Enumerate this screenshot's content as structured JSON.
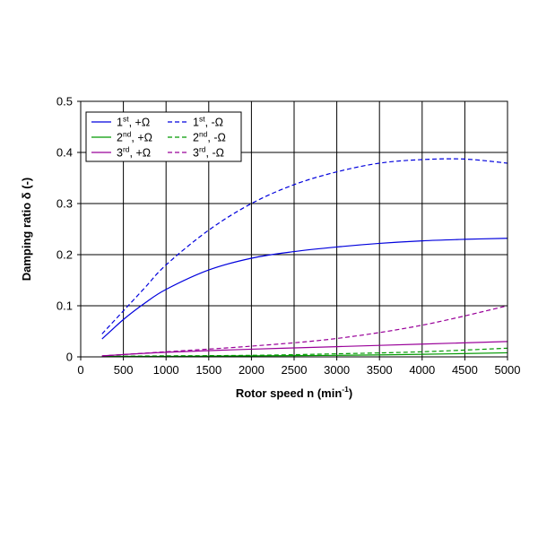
{
  "chart_data": {
    "type": "line",
    "title": "",
    "xlabel": {
      "main": "Rotor speed n (min",
      "sup": "-1",
      "tail": ")"
    },
    "ylabel": "Damping ratio δ (-)",
    "xlim": [
      0,
      5000
    ],
    "ylim": [
      0,
      0.5
    ],
    "xticks": [
      "0",
      "500",
      "1000",
      "1500",
      "2000",
      "2500",
      "3000",
      "3500",
      "4000",
      "4500",
      "5000"
    ],
    "yticks": [
      "0",
      "0.1",
      "0.2",
      "0.3",
      "0.4",
      "0.5"
    ],
    "grid": true,
    "legend_position": "top-left",
    "series": [
      {
        "name": "1st, +Ω",
        "label_num": "1",
        "label_sup": "st",
        "label_tail": ", +Ω",
        "color": "#0000dd",
        "dash": false,
        "x": [
          250,
          500,
          750,
          1000,
          1500,
          2000,
          2500,
          3000,
          3500,
          4000,
          4500,
          5000
        ],
        "y": [
          0.035,
          0.073,
          0.105,
          0.132,
          0.17,
          0.193,
          0.206,
          0.215,
          0.222,
          0.227,
          0.23,
          0.232
        ]
      },
      {
        "name": "1st, -Ω",
        "label_num": "1",
        "label_sup": "st",
        "label_tail": ", -Ω",
        "color": "#0000dd",
        "dash": true,
        "x": [
          250,
          500,
          750,
          1000,
          1500,
          2000,
          2500,
          3000,
          3500,
          4000,
          4500,
          5000
        ],
        "y": [
          0.045,
          0.09,
          0.135,
          0.18,
          0.248,
          0.3,
          0.337,
          0.362,
          0.379,
          0.386,
          0.387,
          0.379
        ]
      },
      {
        "name": "2nd, +Ω",
        "label_num": "2",
        "label_sup": "nd",
        "label_tail": ", +Ω",
        "color": "#009900",
        "dash": false,
        "x": [
          250,
          1000,
          2000,
          3000,
          4000,
          5000
        ],
        "y": [
          0.001,
          0.001,
          0.002,
          0.003,
          0.005,
          0.008
        ]
      },
      {
        "name": "2nd, -Ω",
        "label_num": "2",
        "label_sup": "nd",
        "label_tail": ", -Ω",
        "color": "#009900",
        "dash": true,
        "x": [
          250,
          1000,
          2000,
          3000,
          4000,
          5000
        ],
        "y": [
          0.001,
          0.002,
          0.003,
          0.006,
          0.01,
          0.017
        ]
      },
      {
        "name": "3rd, +Ω",
        "label_num": "3",
        "label_sup": "rd",
        "label_tail": ", +Ω",
        "color": "#990099",
        "dash": false,
        "x": [
          250,
          1000,
          2000,
          3000,
          4000,
          5000
        ],
        "y": [
          0.002,
          0.009,
          0.015,
          0.02,
          0.025,
          0.03
        ]
      },
      {
        "name": "3rd, -Ω",
        "label_num": "3",
        "label_sup": "rd",
        "label_tail": ", -Ω",
        "color": "#990099",
        "dash": true,
        "x": [
          250,
          1000,
          2000,
          3000,
          4000,
          5000
        ],
        "y": [
          0.002,
          0.01,
          0.021,
          0.036,
          0.062,
          0.1
        ]
      }
    ]
  }
}
